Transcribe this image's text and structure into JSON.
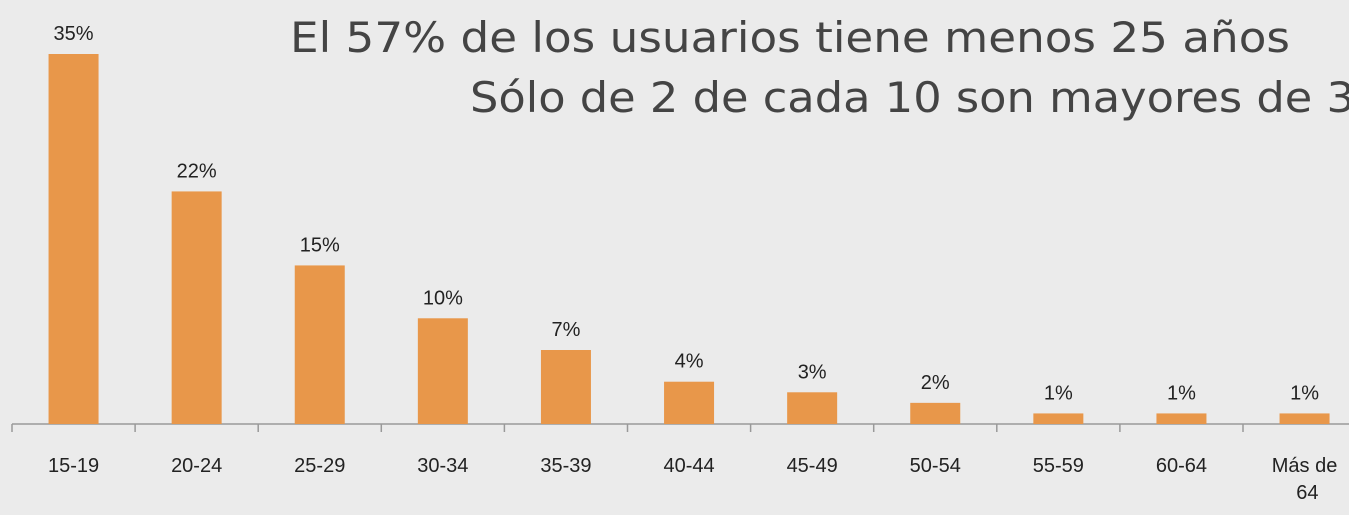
{
  "chart_data": {
    "type": "bar",
    "title": [
      "El 57% de los usuarios tiene menos 25 años",
      "Sólo de 2 de cada 10 son mayores de 3"
    ],
    "categories": [
      "15-19",
      "20-24",
      "25-29",
      "30-34",
      "35-39",
      "40-44",
      "45-49",
      "50-54",
      "55-59",
      "60-64",
      "Más de 64"
    ],
    "values": [
      35,
      22,
      15,
      10,
      7,
      4,
      3,
      2,
      1,
      1,
      1
    ],
    "value_labels": [
      "35%",
      "22%",
      "15%",
      "10%",
      "7%",
      "4%",
      "3%",
      "2%",
      "1%",
      "1%",
      "1%"
    ],
    "color": "#e8974a"
  }
}
